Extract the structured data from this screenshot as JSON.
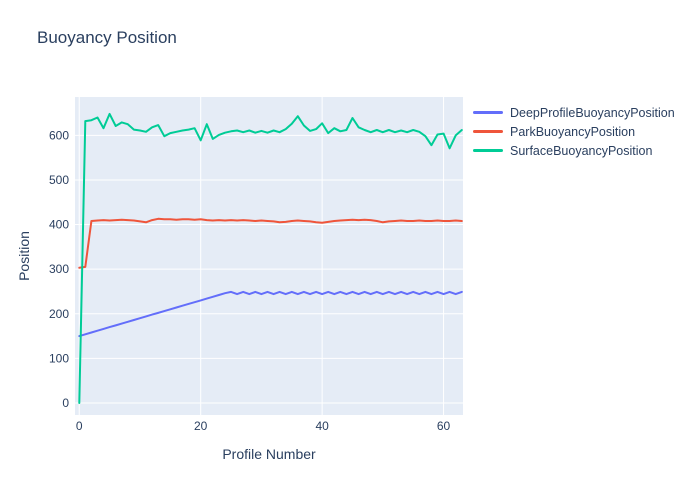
{
  "figure": {
    "title": "Buoyancy Position"
  },
  "chart_data": {
    "type": "line",
    "title": "Buoyancy Position",
    "xlabel": "Profile Number",
    "ylabel": "Position",
    "legend_position": "right",
    "grid": true,
    "plot_bg": "#E5ECF6",
    "paper_bg": "#FFFFFF",
    "text_color": "#2a3f5f",
    "grid_color": "#FFFFFF",
    "xlim": [
      -0.7,
      63.2
    ],
    "ylim": [
      -27,
      686
    ],
    "xticks": [
      0,
      20,
      40,
      60
    ],
    "yticks": [
      0,
      100,
      200,
      300,
      400,
      500,
      600
    ],
    "x": [
      0,
      1,
      2,
      3,
      4,
      5,
      6,
      7,
      8,
      9,
      10,
      11,
      12,
      13,
      14,
      15,
      16,
      17,
      18,
      19,
      20,
      21,
      22,
      23,
      24,
      25,
      26,
      27,
      28,
      29,
      30,
      31,
      32,
      33,
      34,
      35,
      36,
      37,
      38,
      39,
      40,
      41,
      42,
      43,
      44,
      45,
      46,
      47,
      48,
      49,
      50,
      51,
      52,
      53,
      54,
      55,
      56,
      57,
      58,
      59,
      60,
      61,
      62,
      63
    ],
    "series": [
      {
        "name": "DeepProfileBuoyancyPosition",
        "color": "#636EFA",
        "values": [
          150,
          154,
          158,
          162,
          166,
          170,
          174,
          178,
          182,
          186,
          190,
          194,
          198,
          202,
          206,
          210,
          214,
          218,
          222,
          226,
          230,
          234,
          238,
          242,
          246,
          249,
          244,
          249,
          244,
          249,
          244,
          249,
          244,
          249,
          244,
          249,
          244,
          249,
          244,
          249,
          244,
          249,
          244,
          249,
          244,
          249,
          244,
          249,
          244,
          249,
          244,
          249,
          244,
          249,
          244,
          249,
          244,
          249,
          244,
          249,
          244,
          249,
          244,
          249
        ]
      },
      {
        "name": "ParkBuoyancyPosition",
        "color": "#EF553B",
        "values": [
          303,
          305,
          408,
          409,
          410,
          409,
          410,
          411,
          410,
          409,
          407,
          405,
          410,
          413,
          412,
          412,
          411,
          412,
          412,
          411,
          412,
          410,
          409,
          410,
          409,
          410,
          409,
          410,
          409,
          408,
          409,
          408,
          407,
          405,
          406,
          408,
          409,
          408,
          407,
          405,
          404,
          406,
          408,
          409,
          410,
          411,
          410,
          411,
          410,
          408,
          405,
          407,
          408,
          409,
          408,
          408,
          409,
          408,
          408,
          409,
          408,
          408,
          409,
          408
        ]
      },
      {
        "name": "SurfaceBuoyancyPosition",
        "color": "#00CC96",
        "values": [
          0,
          632,
          634,
          640,
          616,
          648,
          621,
          629,
          625,
          613,
          611,
          608,
          618,
          623,
          598,
          605,
          608,
          611,
          613,
          616,
          589,
          625,
          592,
          601,
          606,
          609,
          611,
          607,
          611,
          606,
          610,
          606,
          611,
          607,
          614,
          626,
          643,
          622,
          610,
          614,
          627,
          605,
          616,
          609,
          612,
          639,
          618,
          612,
          607,
          612,
          607,
          612,
          607,
          611,
          607,
          612,
          608,
          598,
          578,
          602,
          604,
          571,
          600,
          612
        ]
      }
    ]
  }
}
